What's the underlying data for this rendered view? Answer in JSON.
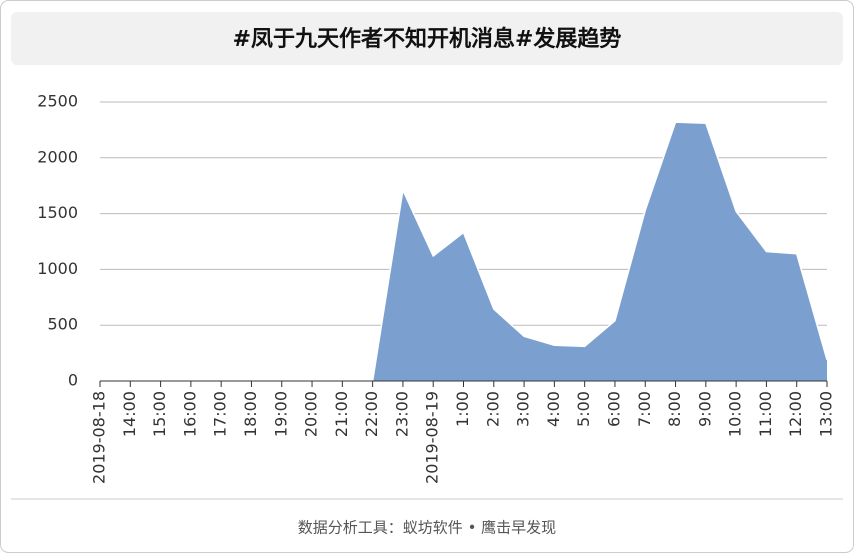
{
  "chart_data": {
    "type": "area",
    "title": "#凤于九天作者不知开机消息#发展趋势",
    "footer": "数据分析工具：蚁坊软件 • 鹰击早发现",
    "categories": [
      "2019-08-18",
      "14:00",
      "15:00",
      "16:00",
      "17:00",
      "18:00",
      "19:00",
      "20:00",
      "21:00",
      "22:00",
      "23:00",
      "2019-08-19",
      "1:00",
      "2:00",
      "3:00",
      "4:00",
      "5:00",
      "6:00",
      "7:00",
      "8:00",
      "9:00",
      "10:00",
      "11:00",
      "12:00",
      "13:00"
    ],
    "values": [
      0,
      0,
      0,
      0,
      0,
      0,
      0,
      0,
      0,
      0,
      1710,
      1120,
      1330,
      645,
      400,
      320,
      310,
      540,
      1530,
      2320,
      2310,
      1520,
      1160,
      1140,
      190
    ],
    "color": "#7ba0cf",
    "ylim": [
      0,
      2500
    ],
    "yticks": [
      0,
      500,
      1000,
      1500,
      2000,
      2500
    ],
    "grid": true
  }
}
